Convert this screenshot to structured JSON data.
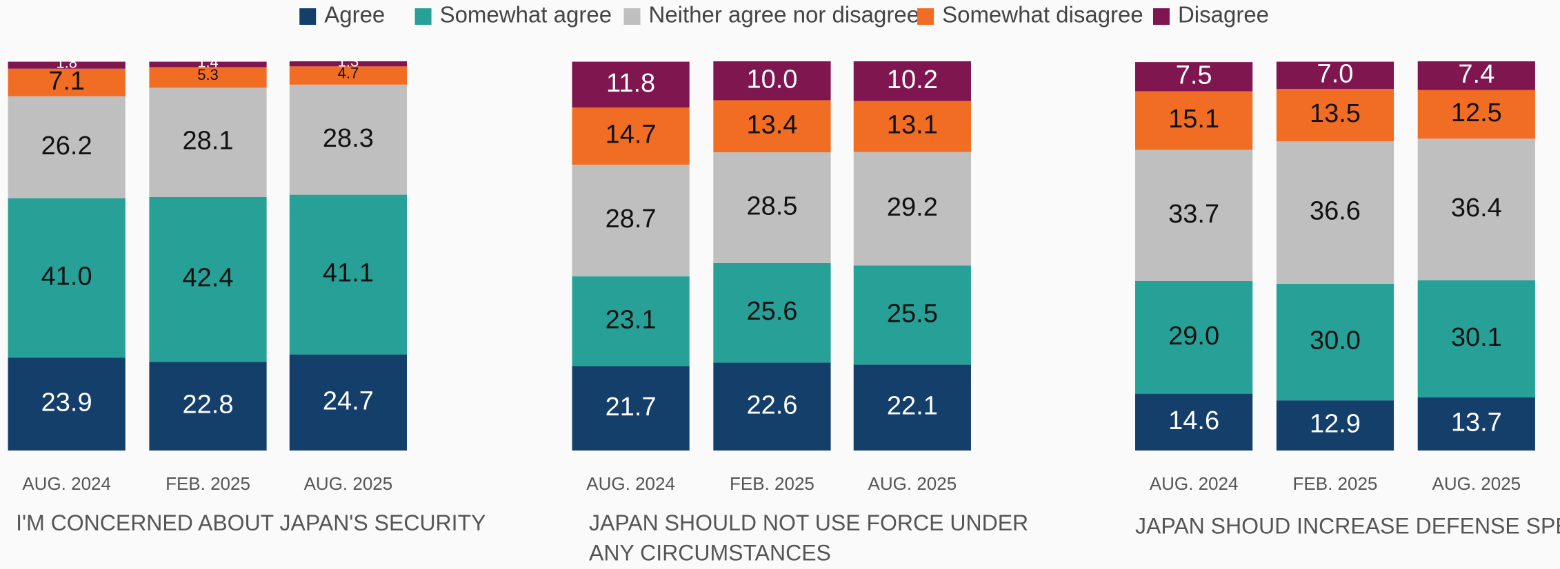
{
  "legend": [
    {
      "name": "Agree",
      "color": "#143f6b"
    },
    {
      "name": "Somewhat agree",
      "color": "#27a197"
    },
    {
      "name": "Neither agree nor disagree",
      "color": "#bfbfbf"
    },
    {
      "name": "Somewhat disagree",
      "color": "#f26d24"
    },
    {
      "name": "Disagree",
      "color": "#7f1650"
    }
  ],
  "chart_data": [
    {
      "type": "stacked_bar",
      "title_lines": [
        "I'M CONCERNED ABOUT JAPAN'S SECURITY"
      ],
      "categories": [
        "AUG. 2024",
        "FEB. 2025",
        "AUG. 2025"
      ],
      "series": [
        {
          "values": [
            23.9,
            22.8,
            24.7
          ],
          "value_labels": [
            "23.9",
            "22.8",
            "24.7"
          ]
        },
        {
          "values": [
            41.0,
            42.4,
            41.1
          ],
          "value_labels": [
            "41.0",
            "42.4",
            "41.1"
          ]
        },
        {
          "values": [
            26.2,
            28.1,
            28.3
          ],
          "value_labels": [
            "26.2",
            "28.1",
            "28.3"
          ]
        },
        {
          "values": [
            7.1,
            5.3,
            4.7
          ],
          "value_labels": [
            "7.1",
            "5.3",
            "4.7"
          ]
        },
        {
          "values": [
            1.8,
            1.4,
            1.3
          ],
          "value_labels": [
            "1.8",
            "1.4",
            "1.3"
          ]
        }
      ]
    },
    {
      "type": "stacked_bar",
      "title_lines": [
        "JAPAN SHOULD NOT USE FORCE UNDER",
        "ANY CIRCUMSTANCES"
      ],
      "categories": [
        "AUG. 2024",
        "FEB. 2025",
        "AUG. 2025"
      ],
      "series": [
        {
          "values": [
            21.7,
            22.6,
            22.1
          ],
          "value_labels": [
            "21.7",
            "22.6",
            "22.1"
          ]
        },
        {
          "values": [
            23.1,
            25.6,
            25.5
          ],
          "value_labels": [
            "23.1",
            "25.6",
            "25.5"
          ]
        },
        {
          "values": [
            28.7,
            28.5,
            29.2
          ],
          "value_labels": [
            "28.7",
            "28.5",
            "29.2"
          ]
        },
        {
          "values": [
            14.7,
            13.4,
            13.1
          ],
          "value_labels": [
            "14.7",
            "13.4",
            "13.1"
          ]
        },
        {
          "values": [
            11.8,
            10.0,
            10.2
          ],
          "value_labels": [
            "11.8",
            "10.0",
            "10.2"
          ]
        }
      ]
    },
    {
      "type": "stacked_bar",
      "title_lines": [
        "JAPAN SHOUD INCREASE DEFENSE SPENDING"
      ],
      "categories": [
        "AUG. 2024",
        "FEB. 2025",
        "AUG. 2025"
      ],
      "series": [
        {
          "values": [
            14.6,
            12.9,
            13.7
          ],
          "value_labels": [
            "14.6",
            "12.9",
            "13.7"
          ]
        },
        {
          "values": [
            29.0,
            30.0,
            30.1
          ],
          "value_labels": [
            "29.0",
            "30.0",
            "30.1"
          ]
        },
        {
          "values": [
            33.7,
            36.6,
            36.4
          ],
          "value_labels": [
            "33.7",
            "36.6",
            "36.4"
          ]
        },
        {
          "values": [
            15.1,
            13.5,
            12.5
          ],
          "value_labels": [
            "15.1",
            "13.5",
            "12.5"
          ]
        },
        {
          "values": [
            7.5,
            7.0,
            7.4
          ],
          "value_labels": [
            "7.5",
            "7.0",
            "7.4"
          ]
        }
      ]
    }
  ]
}
